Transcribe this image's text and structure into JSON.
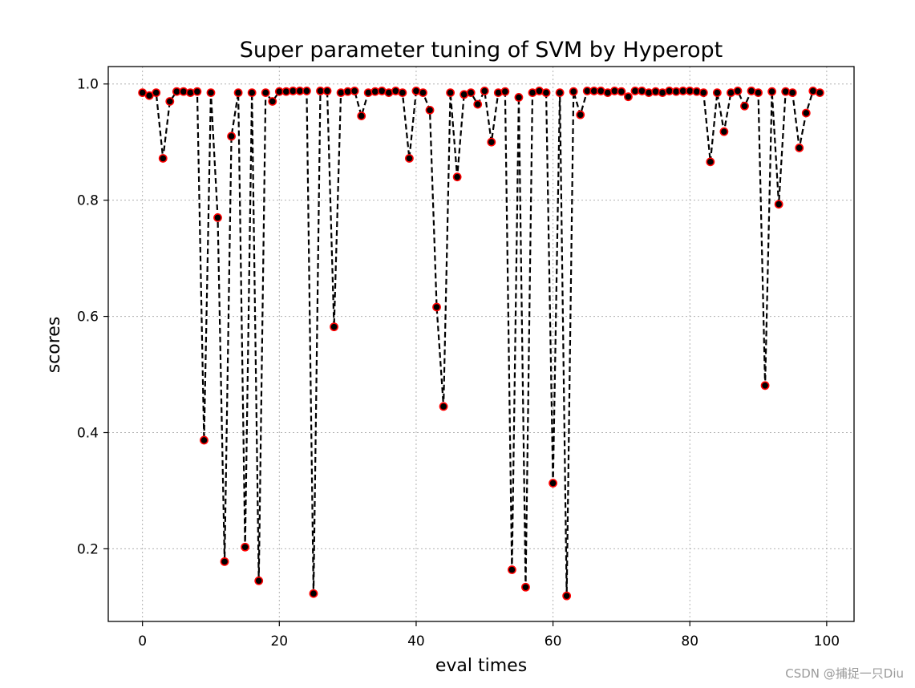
{
  "watermark": "CSDN @捕捉一只Diu",
  "chart_data": {
    "type": "line",
    "title": "Super parameter tuning of SVM by Hyperopt",
    "xlabel": "eval times",
    "ylabel": "scores",
    "xlim": [
      -5,
      104
    ],
    "ylim": [
      0.075,
      1.03
    ],
    "xticks": [
      0,
      20,
      40,
      60,
      80,
      100
    ],
    "yticks": [
      0.2,
      0.4,
      0.6,
      0.8,
      1.0
    ],
    "xtick_labels": [
      "0",
      "20",
      "40",
      "60",
      "80",
      "100"
    ],
    "ytick_labels": [
      "0.2",
      "0.4",
      "0.6",
      "0.8",
      "1.0"
    ],
    "grid": true,
    "line_style": "dashed",
    "line_color": "#000000",
    "marker_face_color": "#000000",
    "marker_edge_color": "#ff0000",
    "x": [
      0,
      1,
      2,
      3,
      4,
      5,
      6,
      7,
      8,
      9,
      10,
      11,
      12,
      13,
      14,
      15,
      16,
      17,
      18,
      19,
      20,
      21,
      22,
      23,
      24,
      25,
      26,
      27,
      28,
      29,
      30,
      31,
      32,
      33,
      34,
      35,
      36,
      37,
      38,
      39,
      40,
      41,
      42,
      43,
      44,
      45,
      46,
      47,
      48,
      49,
      50,
      51,
      52,
      53,
      54,
      55,
      56,
      57,
      58,
      59,
      60,
      61,
      62,
      63,
      64,
      65,
      66,
      67,
      68,
      69,
      70,
      71,
      72,
      73,
      74,
      75,
      76,
      77,
      78,
      79,
      80,
      81,
      82,
      83,
      84,
      85,
      86,
      87,
      88,
      89,
      90,
      91,
      92,
      93,
      94,
      95,
      96,
      97,
      98,
      99
    ],
    "y": [
      0.985,
      0.98,
      0.985,
      0.872,
      0.97,
      0.987,
      0.987,
      0.985,
      0.987,
      0.387,
      0.985,
      0.77,
      0.178,
      0.91,
      0.985,
      0.203,
      0.985,
      0.145,
      0.985,
      0.97,
      0.987,
      0.987,
      0.988,
      0.988,
      0.988,
      0.123,
      0.988,
      0.988,
      0.582,
      0.985,
      0.987,
      0.988,
      0.945,
      0.985,
      0.987,
      0.988,
      0.985,
      0.988,
      0.985,
      0.872,
      0.988,
      0.985,
      0.955,
      0.616,
      0.445,
      0.985,
      0.84,
      0.982,
      0.985,
      0.965,
      0.988,
      0.9,
      0.985,
      0.987,
      0.164,
      0.977,
      0.134,
      0.985,
      0.988,
      0.985,
      0.313,
      0.985,
      0.119,
      0.987,
      0.947,
      0.988,
      0.988,
      0.988,
      0.985,
      0.988,
      0.987,
      0.978,
      0.988,
      0.988,
      0.985,
      0.987,
      0.985,
      0.988,
      0.987,
      0.988,
      0.988,
      0.987,
      0.985,
      0.866,
      0.985,
      0.918,
      0.985,
      0.988,
      0.962,
      0.988,
      0.985,
      0.481,
      0.987,
      0.793,
      0.987,
      0.985,
      0.89,
      0.95,
      0.988,
      0.985
    ]
  }
}
